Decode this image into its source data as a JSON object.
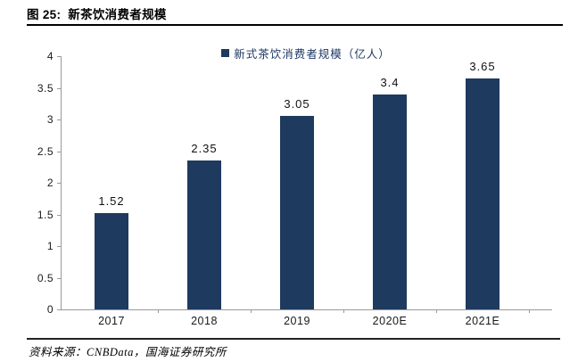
{
  "header": {
    "figure_label": "图 25:",
    "figure_title": "新茶饮消费者规模"
  },
  "legend": {
    "label": "新式茶饮消费者规模（亿人）"
  },
  "colors": {
    "bar": "#1e3a5f",
    "legend_text": "#1f3864",
    "axis": "#9a9a9a"
  },
  "chart_data": {
    "type": "bar",
    "title": "新式茶饮消费者规模（亿人）",
    "categories": [
      "2017",
      "2018",
      "2019",
      "2020E",
      "2021E"
    ],
    "values": [
      1.52,
      2.35,
      3.05,
      3.4,
      3.65
    ],
    "value_labels": [
      "1.52",
      "2.35",
      "3.05",
      "3.4",
      "3.65"
    ],
    "xlabel": "",
    "ylabel": "",
    "ylim": [
      0,
      4
    ],
    "ytick_labels": [
      "0",
      "0.5",
      "1",
      "1.5",
      "2",
      "2.5",
      "3",
      "3.5",
      "4"
    ],
    "grid": false,
    "legend_position": "top-center"
  },
  "footer": {
    "source_prefix": "资料来源：",
    "source_text": "CNBData，国海证券研究所"
  }
}
